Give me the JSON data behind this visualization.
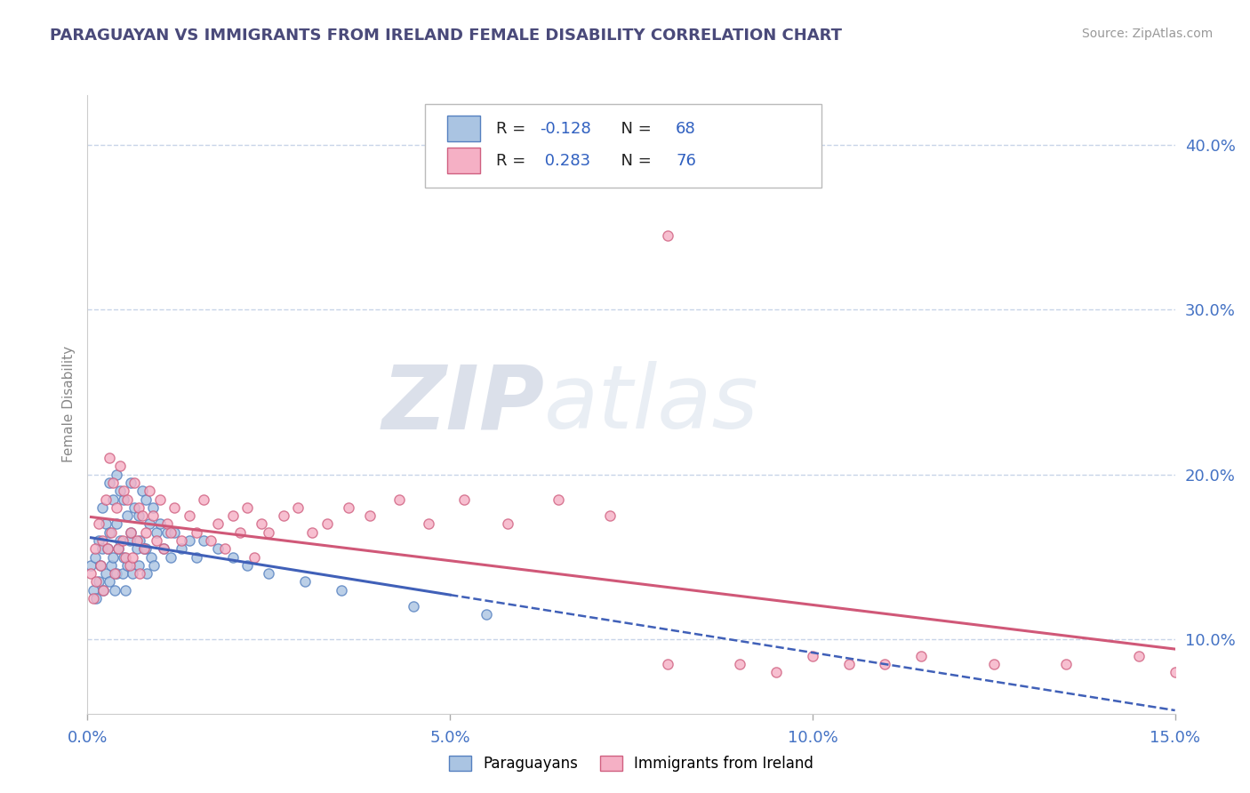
{
  "title": "PARAGUAYAN VS IMMIGRANTS FROM IRELAND FEMALE DISABILITY CORRELATION CHART",
  "source_text": "Source: ZipAtlas.com",
  "xlim": [
    0.0,
    15.0
  ],
  "ylim": [
    5.5,
    43.0
  ],
  "xlabel_vals": [
    0.0,
    5.0,
    10.0,
    15.0
  ],
  "ylabel_vals": [
    10.0,
    20.0,
    30.0,
    40.0
  ],
  "ylabel": "Female Disability",
  "blue_R": -0.128,
  "blue_N": 68,
  "pink_R": 0.283,
  "pink_N": 76,
  "blue_face": "#aac4e2",
  "blue_edge": "#5580c0",
  "pink_face": "#f5b0c5",
  "pink_edge": "#d06080",
  "blue_line": "#4060b8",
  "pink_line": "#d05878",
  "legend_label_blue": "Paraguayans",
  "legend_label_pink": "Immigrants from Ireland",
  "watermark_zip": "ZIP",
  "watermark_atlas": "atlas",
  "title_color": "#4a4a7a",
  "R_N_color": "#3060c0",
  "bg_color": "#ffffff",
  "grid_color": "#c8d4e8",
  "source_color": "#999999",
  "ylabel_color": "#888888",
  "tick_color": "#4472c4",
  "blue_x": [
    0.05,
    0.08,
    0.1,
    0.12,
    0.15,
    0.15,
    0.18,
    0.2,
    0.2,
    0.22,
    0.25,
    0.25,
    0.28,
    0.3,
    0.3,
    0.3,
    0.32,
    0.35,
    0.35,
    0.38,
    0.4,
    0.4,
    0.4,
    0.42,
    0.45,
    0.45,
    0.48,
    0.5,
    0.5,
    0.52,
    0.55,
    0.55,
    0.58,
    0.6,
    0.6,
    0.62,
    0.65,
    0.68,
    0.7,
    0.7,
    0.72,
    0.75,
    0.78,
    0.8,
    0.8,
    0.82,
    0.85,
    0.88,
    0.9,
    0.92,
    0.95,
    1.0,
    1.05,
    1.1,
    1.15,
    1.2,
    1.3,
    1.4,
    1.5,
    1.6,
    1.8,
    2.0,
    2.2,
    2.5,
    3.0,
    3.5,
    4.5,
    5.5
  ],
  "blue_y": [
    14.5,
    13.0,
    15.0,
    12.5,
    16.0,
    13.5,
    14.5,
    18.0,
    15.5,
    13.0,
    17.0,
    14.0,
    15.5,
    19.5,
    16.5,
    13.5,
    14.5,
    18.5,
    15.0,
    13.0,
    20.0,
    17.0,
    14.0,
    15.5,
    19.0,
    16.0,
    14.0,
    18.5,
    15.0,
    13.0,
    17.5,
    14.5,
    16.0,
    19.5,
    16.5,
    14.0,
    18.0,
    15.5,
    17.5,
    14.5,
    16.0,
    19.0,
    15.5,
    18.5,
    15.5,
    14.0,
    17.0,
    15.0,
    18.0,
    14.5,
    16.5,
    17.0,
    15.5,
    16.5,
    15.0,
    16.5,
    15.5,
    16.0,
    15.0,
    16.0,
    15.5,
    15.0,
    14.5,
    14.0,
    13.5,
    13.0,
    12.0,
    11.5
  ],
  "pink_x": [
    0.05,
    0.08,
    0.1,
    0.12,
    0.15,
    0.18,
    0.2,
    0.22,
    0.25,
    0.28,
    0.3,
    0.32,
    0.35,
    0.38,
    0.4,
    0.42,
    0.45,
    0.48,
    0.5,
    0.52,
    0.55,
    0.58,
    0.6,
    0.62,
    0.65,
    0.68,
    0.7,
    0.72,
    0.75,
    0.78,
    0.8,
    0.85,
    0.9,
    0.95,
    1.0,
    1.05,
    1.1,
    1.15,
    1.2,
    1.3,
    1.4,
    1.5,
    1.6,
    1.7,
    1.8,
    1.9,
    2.0,
    2.1,
    2.2,
    2.3,
    2.4,
    2.5,
    2.7,
    2.9,
    3.1,
    3.3,
    3.6,
    3.9,
    4.3,
    4.7,
    5.2,
    5.8,
    6.5,
    7.2,
    8.0,
    8.0,
    9.0,
    9.5,
    10.0,
    10.5,
    11.0,
    11.5,
    12.5,
    13.5,
    14.5,
    15.0
  ],
  "pink_y": [
    14.0,
    12.5,
    15.5,
    13.5,
    17.0,
    14.5,
    16.0,
    13.0,
    18.5,
    15.5,
    21.0,
    16.5,
    19.5,
    14.0,
    18.0,
    15.5,
    20.5,
    16.0,
    19.0,
    15.0,
    18.5,
    14.5,
    16.5,
    15.0,
    19.5,
    16.0,
    18.0,
    14.0,
    17.5,
    15.5,
    16.5,
    19.0,
    17.5,
    16.0,
    18.5,
    15.5,
    17.0,
    16.5,
    18.0,
    16.0,
    17.5,
    16.5,
    18.5,
    16.0,
    17.0,
    15.5,
    17.5,
    16.5,
    18.0,
    15.0,
    17.0,
    16.5,
    17.5,
    18.0,
    16.5,
    17.0,
    18.0,
    17.5,
    18.5,
    17.0,
    18.5,
    17.0,
    18.5,
    17.5,
    34.5,
    8.5,
    8.5,
    8.0,
    9.0,
    8.5,
    8.5,
    9.0,
    8.5,
    8.5,
    9.0,
    8.0
  ]
}
